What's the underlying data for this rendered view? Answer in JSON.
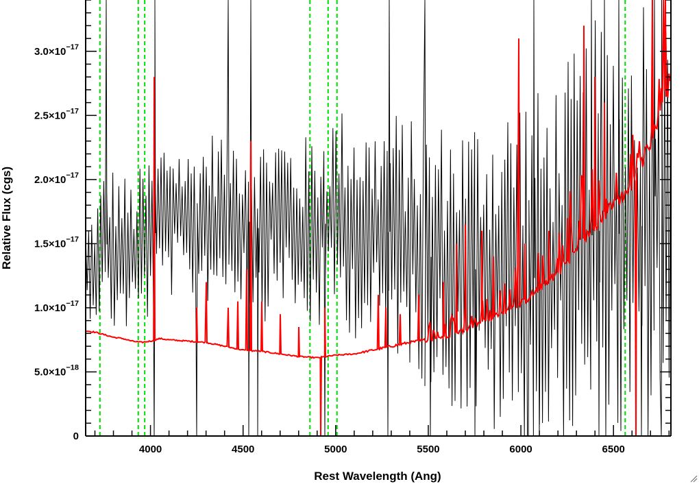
{
  "chart_data": {
    "type": "line",
    "title": "",
    "xlabel": "Rest Wavelength (Ang)",
    "ylabel": "Relative Flux (cgs)",
    "xlim": [
      3650,
      6810
    ],
    "ylim": [
      0,
      3.4e-17
    ],
    "x_ticks": [
      {
        "value": 4000,
        "label": "4000"
      },
      {
        "value": 4500,
        "label": "4500"
      },
      {
        "value": 5000,
        "label": "5000"
      },
      {
        "value": 5500,
        "label": "5500"
      },
      {
        "value": 6000,
        "label": "6000"
      },
      {
        "value": 6500,
        "label": "6500"
      }
    ],
    "y_ticks": [
      {
        "value": 0,
        "label": "0",
        "mant": "0",
        "exp": ""
      },
      {
        "value": 5e-18,
        "label": "5.0×10^-18",
        "mant": "5.0×10",
        "exp": "−18"
      },
      {
        "value": 1e-17,
        "label": "1.0×10^-17",
        "mant": "1.0×10",
        "exp": "−17"
      },
      {
        "value": 1.5e-17,
        "label": "1.5×10^-17",
        "mant": "1.5×10",
        "exp": "−17"
      },
      {
        "value": 2e-17,
        "label": "2.0×10^-17",
        "mant": "2.0×10",
        "exp": "−17"
      },
      {
        "value": 2.5e-17,
        "label": "2.5×10^-17",
        "mant": "2.5×10",
        "exp": "−17"
      },
      {
        "value": 3e-17,
        "label": "3.0×10^-17",
        "mant": "3.0×10",
        "exp": "−17"
      }
    ],
    "grid": false,
    "legend": "none",
    "reference_lines": {
      "x": [
        3727,
        3934,
        3969,
        4861,
        4959,
        5007,
        6563
      ],
      "color": "#00dd00",
      "style": "dashed"
    },
    "series": [
      {
        "color": "#000000",
        "style": "noisy",
        "x": [
          3650,
          3700,
          3750,
          3800,
          3900,
          4000,
          4100,
          4200,
          4300,
          4400,
          4500,
          4600,
          4700,
          4800,
          4900,
          5000,
          5100,
          5200,
          5300,
          5400,
          5500,
          5600,
          5700,
          5800,
          5900,
          6000,
          6100,
          6200,
          6300,
          6400,
          6500,
          6600,
          6700,
          6810
        ],
        "y": [
          1.3e-17,
          1.35e-17,
          1.5e-17,
          1.45e-17,
          1.4e-17,
          1.55e-17,
          1.75e-17,
          1.65e-17,
          1.7e-17,
          1.75e-17,
          1.7e-17,
          1.6e-17,
          1.75e-17,
          1.55e-17,
          1.6e-17,
          1.75e-17,
          1.65e-17,
          1.55e-17,
          1.6e-17,
          1.5e-17,
          1.4e-17,
          1.35e-17,
          1.3e-17,
          1.3e-17,
          1.25e-17,
          1.3e-17,
          1.2e-17,
          1.35e-17,
          1.45e-17,
          1.6e-17,
          1.6e-17,
          1.5e-17,
          1.8e-17,
          2.2e-17
        ],
        "noise": [
          2.5e-18,
          3e-18,
          4e-18,
          4.5e-18,
          4e-18,
          4.5e-18,
          4.5e-18,
          4e-18,
          4.5e-18,
          4.5e-18,
          4.5e-18,
          5e-18,
          4.5e-18,
          5e-18,
          5.5e-18,
          5.5e-18,
          6e-18,
          6e-18,
          6.5e-18,
          6.5e-18,
          7e-18,
          7.5e-18,
          8e-18,
          8.5e-18,
          9e-18,
          1e-17,
          1e-17,
          1e-17,
          1.05e-17,
          1.1e-17,
          1.1e-17,
          1.2e-17,
          1.3e-17,
          1.4e-17
        ],
        "spikes": [
          {
            "x": 3760,
            "y": 3.4e-17
          },
          {
            "x": 4020,
            "y": 0
          },
          {
            "x": 4025,
            "y": 3.4e-17
          },
          {
            "x": 4250,
            "y": 0
          },
          {
            "x": 4420,
            "y": 3.4e-17
          },
          {
            "x": 4530,
            "y": 0
          },
          {
            "x": 4540,
            "y": 3.4e-17
          },
          {
            "x": 4580,
            "y": 0
          },
          {
            "x": 4940,
            "y": 0
          },
          {
            "x": 5280,
            "y": 0
          },
          {
            "x": 5290,
            "y": 3.4e-17
          },
          {
            "x": 5480,
            "y": 3.4e-17
          },
          {
            "x": 5510,
            "y": 0
          },
          {
            "x": 5750,
            "y": 0
          },
          {
            "x": 6040,
            "y": 0
          },
          {
            "x": 6070,
            "y": 3.4e-17
          },
          {
            "x": 6100,
            "y": 0
          },
          {
            "x": 6380,
            "y": 3.4e-17
          },
          {
            "x": 6420,
            "y": 0
          },
          {
            "x": 6450,
            "y": 3.4e-17
          },
          {
            "x": 6530,
            "y": 3.4e-17
          },
          {
            "x": 6650,
            "y": 0
          },
          {
            "x": 6720,
            "y": 3.4e-17
          },
          {
            "x": 6760,
            "y": 0
          }
        ]
      },
      {
        "color": "#ff0000",
        "style": "smooth-with-spikes",
        "x": [
          3650,
          3700,
          3750,
          3800,
          3850,
          3900,
          3950,
          4000,
          4050,
          4100,
          4200,
          4300,
          4400,
          4500,
          4600,
          4700,
          4800,
          4900,
          5000,
          5100,
          5200,
          5300,
          5400,
          5500,
          5600,
          5700,
          5800,
          5900,
          6000,
          6100,
          6200,
          6300,
          6400,
          6500,
          6600,
          6700,
          6810
        ],
        "y": [
          8.2e-18,
          8.1e-18,
          7.9e-18,
          7.7e-18,
          7.6e-18,
          7.4e-18,
          7.3e-18,
          7.4e-18,
          7.6e-18,
          7.5e-18,
          7.4e-18,
          7.3e-18,
          7e-18,
          6.7e-18,
          6.6e-18,
          6.4e-18,
          6.2e-18,
          6.1e-18,
          6.3e-18,
          6.4e-18,
          6.7e-18,
          7e-18,
          7.3e-18,
          7.5e-18,
          7.8e-18,
          8.3e-18,
          9e-18,
          9.6e-18,
          1.03e-17,
          1.15e-17,
          1.28e-17,
          1.45e-17,
          1.65e-17,
          1.8e-17,
          1.95e-17,
          2.3e-17,
          2.8e-17
        ],
        "noise": [
          5e-20,
          5e-20,
          5e-20,
          5e-20,
          5e-20,
          5e-20,
          5e-20,
          5e-20,
          5e-20,
          5e-20,
          5e-20,
          5e-20,
          5e-20,
          5e-20,
          5e-20,
          5e-20,
          5e-20,
          5e-20,
          5e-20,
          5e-20,
          8e-20,
          1e-19,
          1e-19,
          1.5e-19,
          1.5e-19,
          2e-19,
          2e-19,
          2.5e-19,
          3e-19,
          3e-19,
          4e-19,
          5e-19,
          5e-19,
          5e-19,
          5e-19,
          6e-19,
          8e-19
        ],
        "spikes": [
          {
            "x": 4020,
            "y": 2.8e-17
          },
          {
            "x": 4250,
            "y": 1e-17
          },
          {
            "x": 4300,
            "y": 1.2e-17
          },
          {
            "x": 4420,
            "y": 1e-17
          },
          {
            "x": 4470,
            "y": 1.05e-17
          },
          {
            "x": 4520,
            "y": 1.3e-17
          },
          {
            "x": 4540,
            "y": 2.3e-17
          },
          {
            "x": 4600,
            "y": 1.05e-17
          },
          {
            "x": 4700,
            "y": 9.5e-18
          },
          {
            "x": 4800,
            "y": 8.5e-18
          },
          {
            "x": 4920,
            "y": 0
          },
          {
            "x": 4940,
            "y": 1e-17
          },
          {
            "x": 5230,
            "y": 1.1e-17
          },
          {
            "x": 5270,
            "y": 1e-17
          },
          {
            "x": 5350,
            "y": 9.5e-18
          },
          {
            "x": 5450,
            "y": 1.1e-17
          },
          {
            "x": 5580,
            "y": 1.2e-17
          },
          {
            "x": 5650,
            "y": 1.5e-17
          },
          {
            "x": 5700,
            "y": 1.65e-17
          },
          {
            "x": 5790,
            "y": 1.6e-17
          },
          {
            "x": 5850,
            "y": 1.4e-17
          },
          {
            "x": 5990,
            "y": 3.1e-17
          },
          {
            "x": 6020,
            "y": 1.5e-17
          },
          {
            "x": 6150,
            "y": 1.6e-17
          },
          {
            "x": 6250,
            "y": 1.7e-17
          },
          {
            "x": 6340,
            "y": 3.2e-17
          },
          {
            "x": 6400,
            "y": 2.8e-17
          },
          {
            "x": 6450,
            "y": 2.6e-17
          },
          {
            "x": 6620,
            "y": 0
          },
          {
            "x": 6710,
            "y": 3.4e-17
          },
          {
            "x": 6780,
            "y": 3.4e-17
          }
        ]
      }
    ]
  }
}
